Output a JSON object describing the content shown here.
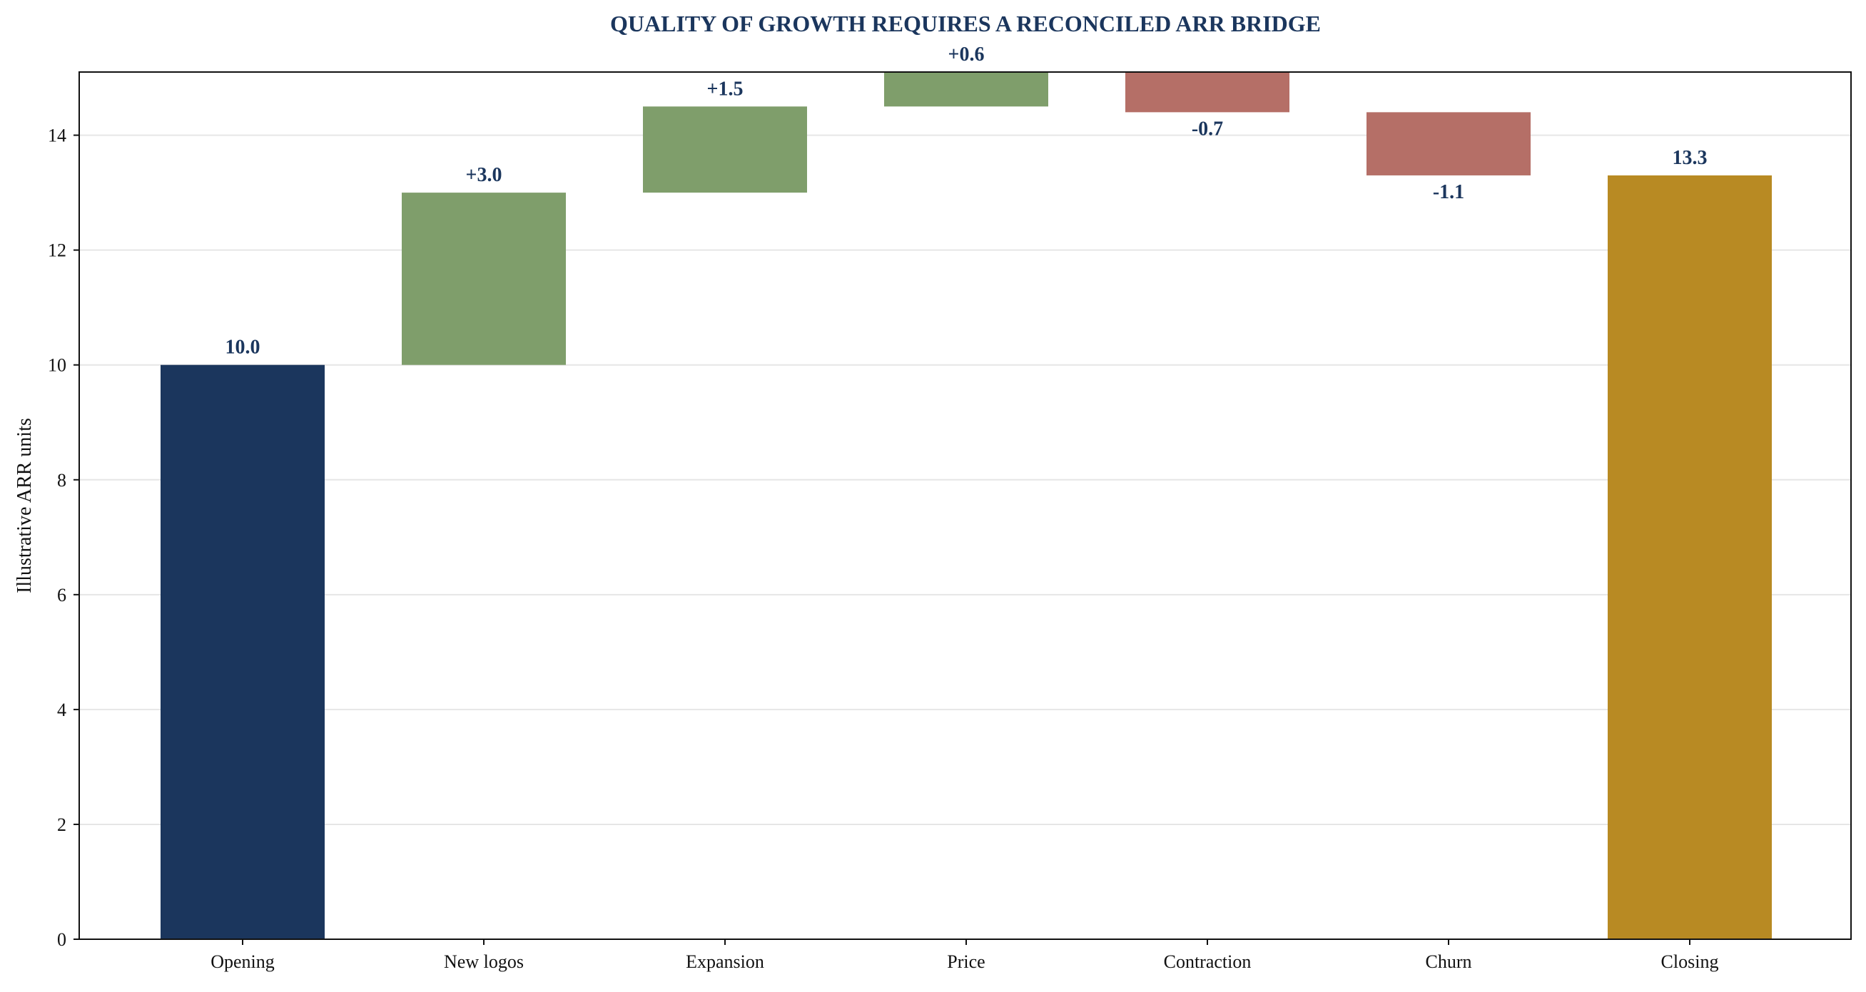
{
  "chart_data": {
    "type": "bar",
    "subtype": "waterfall",
    "title": "QUALITY OF GROWTH REQUIRES A RECONCILED ARR BRIDGE",
    "xlabel": "",
    "ylabel": "Illustrative ARR units",
    "ylim": [
      0,
      15.1
    ],
    "yticks": [
      0,
      2,
      4,
      6,
      8,
      10,
      12,
      14
    ],
    "grid": "horizontal",
    "legend": "none",
    "categories": [
      "Opening",
      "New logos",
      "Expansion",
      "Price",
      "Contraction",
      "Churn",
      "Closing"
    ],
    "steps": [
      {
        "category": "Opening",
        "kind": "total",
        "value": 10.0,
        "label": "10.0"
      },
      {
        "category": "New logos",
        "kind": "increase",
        "value": 3.0,
        "label": "+3.0"
      },
      {
        "category": "Expansion",
        "kind": "increase",
        "value": 1.5,
        "label": "+1.5"
      },
      {
        "category": "Price",
        "kind": "increase",
        "value": 0.6,
        "label": "+0.6"
      },
      {
        "category": "Contraction",
        "kind": "decrease",
        "value": -0.7,
        "label": "-0.7"
      },
      {
        "category": "Churn",
        "kind": "decrease",
        "value": -1.1,
        "label": "-1.1"
      },
      {
        "category": "Closing",
        "kind": "total",
        "value": 13.3,
        "label": "13.3"
      }
    ]
  },
  "colors": {
    "opening": "#1b365d",
    "increase": "#7f9e6b",
    "decrease": "#b56f67",
    "closing": "#b88a23",
    "title": "#1b365d",
    "value_label": "#1b365d",
    "grid": "#e6e6e6",
    "axis": "#111111"
  }
}
